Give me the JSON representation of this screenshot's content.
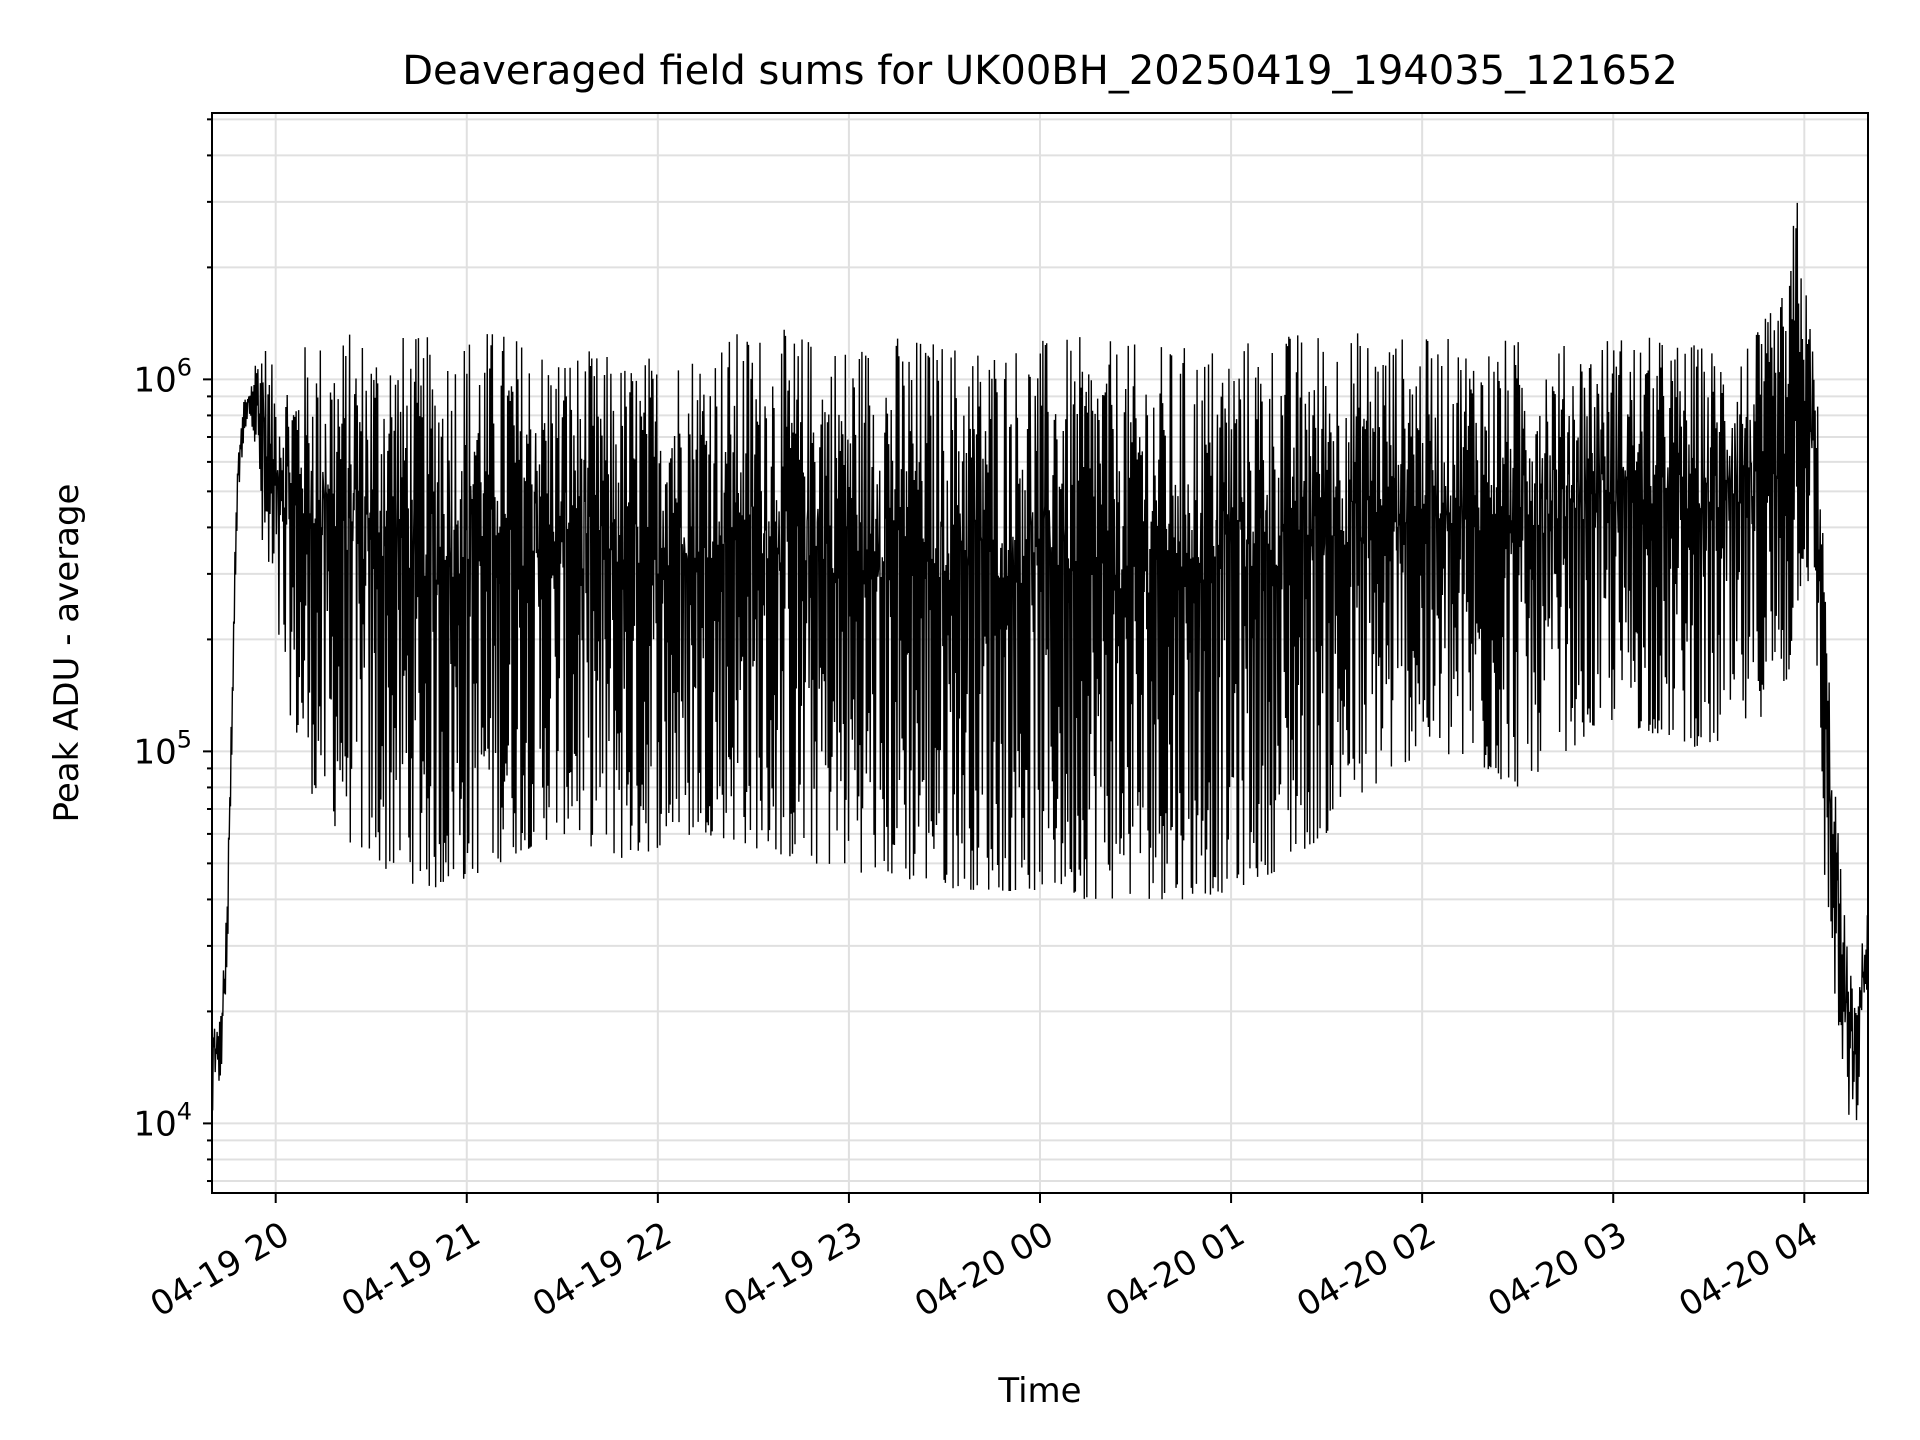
{
  "chart_data": {
    "type": "line",
    "title": "Deaveraged field sums for UK00BH_20250419_194035_121652",
    "xlabel": "Time",
    "ylabel": "Peak ADU - average",
    "yscale": "log",
    "ylim": [
      6500,
      5200000
    ],
    "xlim": [
      "2025-04-19 19:40",
      "2025-04-20 04:20"
    ],
    "x_ticks": [
      "04-19 20",
      "04-19 21",
      "04-19 22",
      "04-19 23",
      "04-20 00",
      "04-20 01",
      "04-20 02",
      "04-20 03",
      "04-20 04"
    ],
    "y_ticks": [
      {
        "base": "10",
        "exp": "4",
        "value": 10000
      },
      {
        "base": "10",
        "exp": "5",
        "value": 100000
      },
      {
        "base": "10",
        "exp": "6",
        "value": 1000000
      }
    ],
    "grid": true,
    "line_color": "#000000",
    "series": [
      {
        "x": [
          "2025-04-19 19:40",
          "2025-04-19 19:41",
          "2025-04-19 19:42",
          "2025-04-19 19:43",
          "2025-04-19 19:44",
          "2025-04-19 19:45",
          "2025-04-19 19:46",
          "2025-04-19 19:47",
          "2025-04-19 19:48",
          "2025-04-19 19:50",
          "2025-04-19 19:52",
          "2025-04-19 19:54",
          "2025-04-19 19:56",
          "2025-04-19 19:58",
          "2025-04-19 20:00",
          "2025-04-19 20:05",
          "2025-04-19 20:10",
          "2025-04-19 20:20",
          "2025-04-19 20:30",
          "2025-04-19 20:40",
          "2025-04-19 20:50",
          "2025-04-19 21:00",
          "2025-04-19 21:10",
          "2025-04-19 21:20",
          "2025-04-19 21:30",
          "2025-04-19 21:40",
          "2025-04-19 21:50",
          "2025-04-19 22:00",
          "2025-04-19 22:15",
          "2025-04-19 22:30",
          "2025-04-19 22:45",
          "2025-04-19 23:00",
          "2025-04-19 23:15",
          "2025-04-19 23:30",
          "2025-04-19 23:45",
          "2025-04-20 00:00",
          "2025-04-20 00:15",
          "2025-04-20 00:30",
          "2025-04-20 00:45",
          "2025-04-20 01:00",
          "2025-04-20 01:15",
          "2025-04-20 01:30",
          "2025-04-20 01:45",
          "2025-04-20 02:00",
          "2025-04-20 02:15",
          "2025-04-20 02:30",
          "2025-04-20 02:45",
          "2025-04-20 03:00",
          "2025-04-20 03:15",
          "2025-04-20 03:30",
          "2025-04-20 03:45",
          "2025-04-20 03:55",
          "2025-04-20 03:58",
          "2025-04-20 04:00",
          "2025-04-20 04:03",
          "2025-04-20 04:05",
          "2025-04-20 04:06",
          "2025-04-20 04:08",
          "2025-04-20 04:10",
          "2025-04-20 04:12",
          "2025-04-20 04:14",
          "2025-04-20 04:16",
          "2025-04-20 04:18",
          "2025-04-20 04:20"
        ],
        "low": [
          10000,
          11000,
          12000,
          14000,
          18000,
          30000,
          80000,
          200000,
          450000,
          700000,
          820000,
          600000,
          300000,
          250000,
          200000,
          120000,
          80000,
          60000,
          50000,
          45000,
          42000,
          45000,
          50000,
          55000,
          60000,
          55000,
          50000,
          55000,
          60000,
          55000,
          50000,
          48000,
          45000,
          43000,
          42000,
          42000,
          40000,
          40000,
          40000,
          42000,
          48000,
          60000,
          80000,
          100000,
          90000,
          80000,
          100000,
          120000,
          110000,
          100000,
          120000,
          150000,
          250000,
          300000,
          250000,
          100000,
          50000,
          30000,
          20000,
          12000,
          10000,
          9000,
          15000,
          25000
        ],
        "high": [
          18000,
          20000,
          18000,
          22000,
          30000,
          50000,
          120000,
          300000,
          600000,
          900000,
          950000,
          1200000,
          1400000,
          1100000,
          1100000,
          1100000,
          1300000,
          1350000,
          1400000,
          1350000,
          1300000,
          1400000,
          1400000,
          1300000,
          1250000,
          1200000,
          1150000,
          1200000,
          1300000,
          1400000,
          1350000,
          1300000,
          1350000,
          1300000,
          1300000,
          1300000,
          1300000,
          1250000,
          1250000,
          1300000,
          1350000,
          1400000,
          1350000,
          1300000,
          1300000,
          1300000,
          1250000,
          1350000,
          1300000,
          1250000,
          1350000,
          1800000,
          3800000,
          1900000,
          1300000,
          700000,
          400000,
          150000,
          80000,
          40000,
          30000,
          20000,
          30000,
          40000
        ]
      }
    ]
  }
}
